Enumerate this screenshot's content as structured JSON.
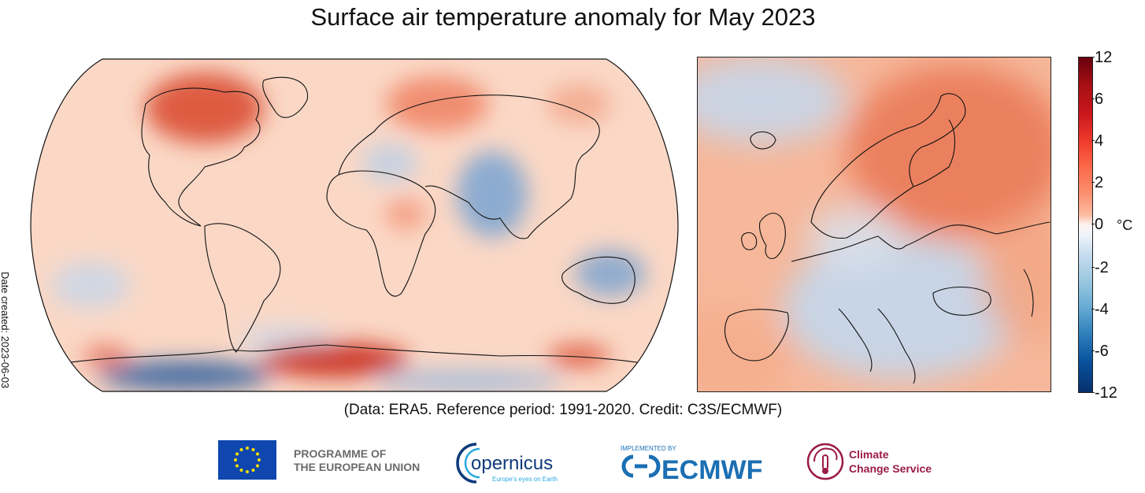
{
  "title": "Surface air temperature anomaly for May 2023",
  "date_created": "Date created: 2023-06-03",
  "caption": "(Data: ERA5.  Reference period: 1991-2020.  Credit: C3S/ECMWF)",
  "colorbar": {
    "unit": "°C",
    "ticks": [
      "12",
      "6",
      "4",
      "2",
      "0",
      "-2",
      "-4",
      "-6",
      "-12"
    ],
    "colors": [
      "#67000d",
      "#cb181d",
      "#fb6a4a",
      "#fcbba1",
      "#f7f7f7",
      "#c6dbef",
      "#6baed6",
      "#2171b5",
      "#08306b"
    ]
  },
  "logos": {
    "eu_line1": "PROGRAMME OF",
    "eu_line2": "THE EUROPEAN UNION",
    "copernicus_name": "opernicus",
    "copernicus_tagline": "Europe's eyes on Earth",
    "ecmwf_implemented": "IMPLEMENTED BY",
    "ecmwf_name": "ECMWF",
    "c3s_line1": "Climate",
    "c3s_line2": "Change Service"
  }
}
